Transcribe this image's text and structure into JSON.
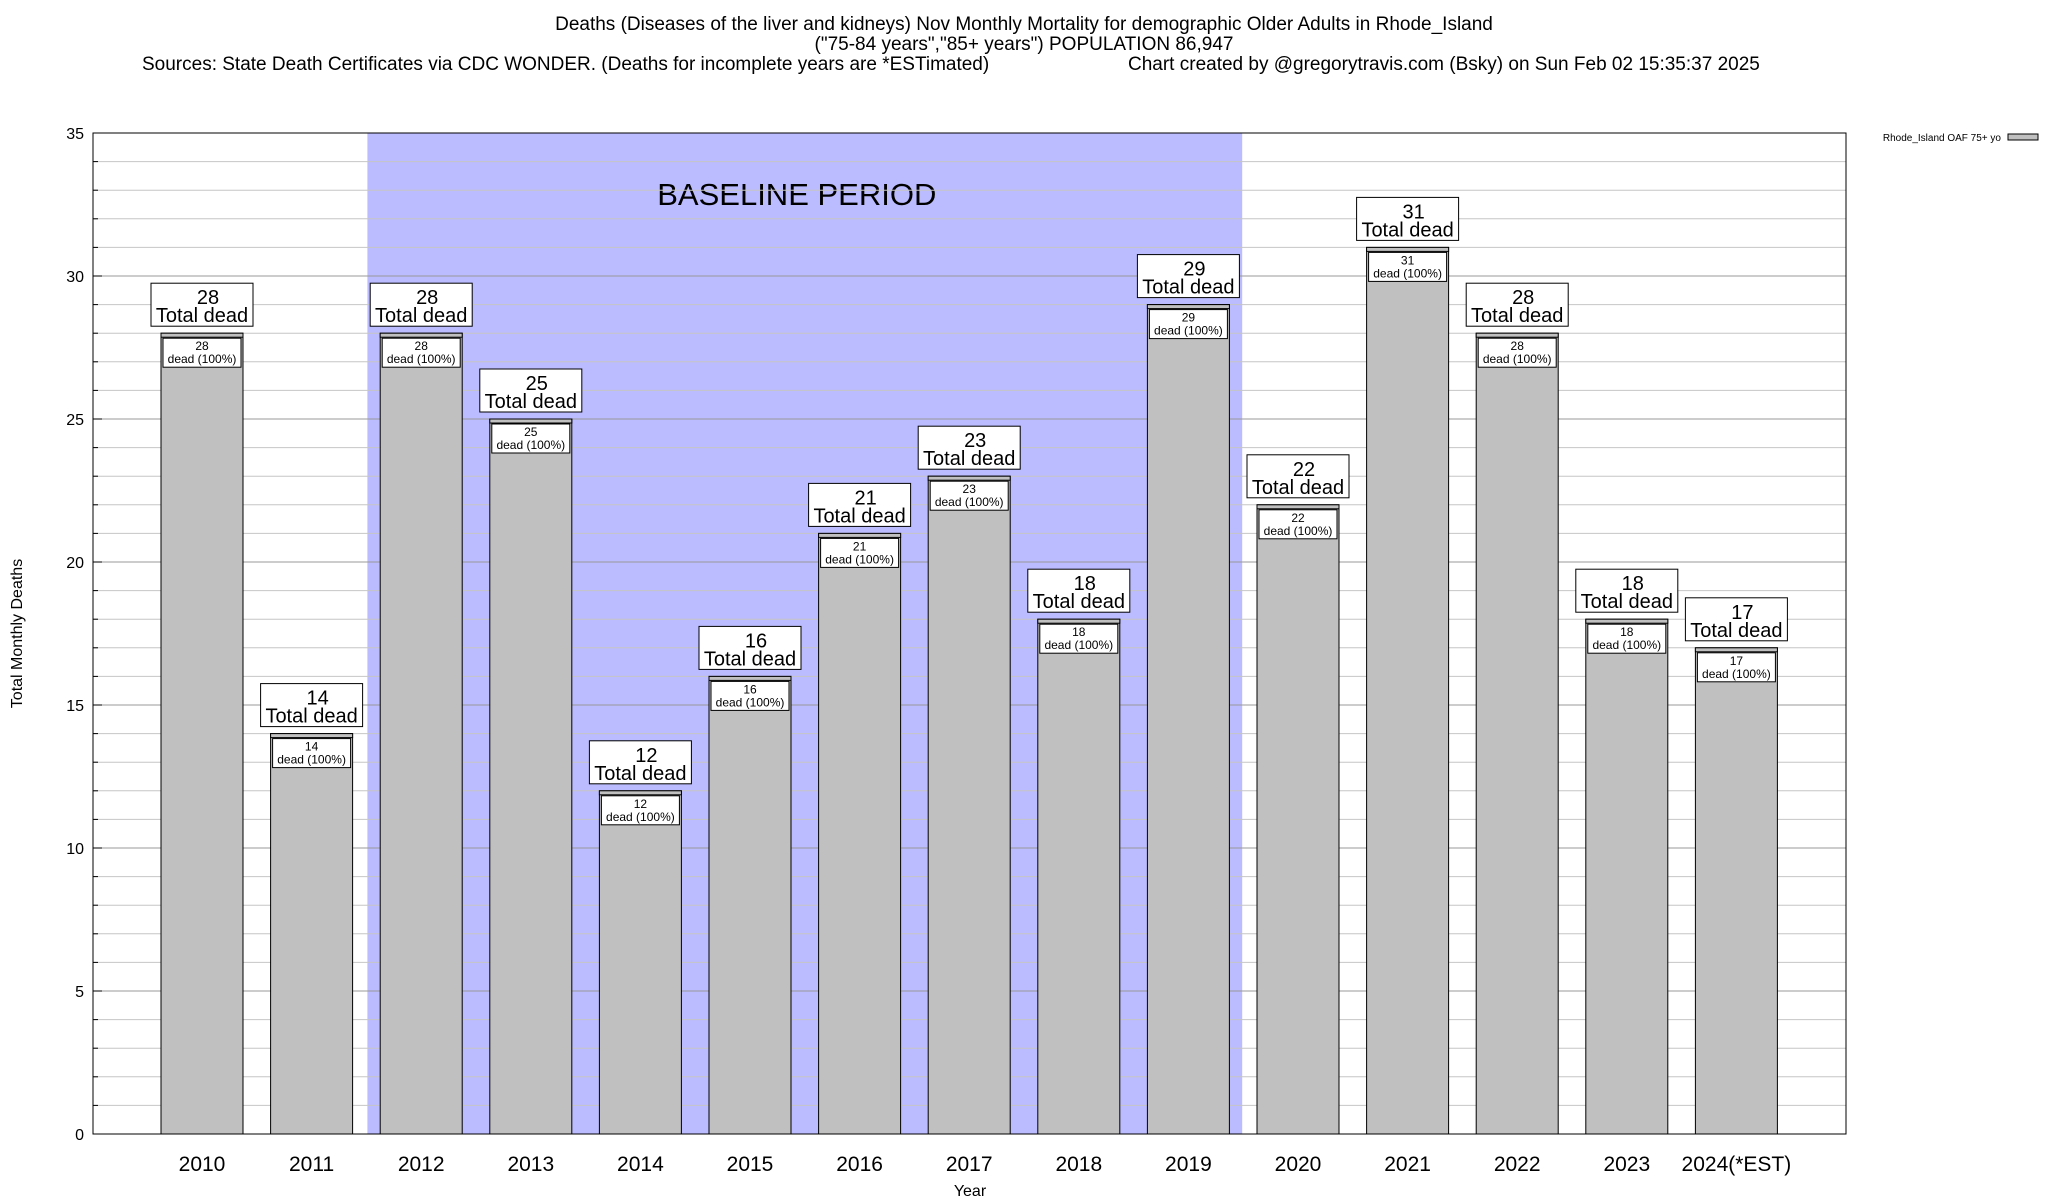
{
  "header": {
    "title_line1": "Deaths (Diseases of the liver and kidneys) Nov Monthly Mortality for demographic Older Adults in Rhode_Island",
    "title_line2": "(\"75-84 years\",\"85+ years\") POPULATION 86,947",
    "sources": "Sources: State Death Certificates via CDC WONDER. (Deaths for incomplete years are *ESTimated)",
    "credit": "Chart created by @gregorytravis.com (Bsky) on Sun Feb 02 15:35:37 2025"
  },
  "chart_data": {
    "type": "bar",
    "title": "Deaths (Diseases of the liver and kidneys) Nov Monthly Mortality for demographic Older Adults in Rhode_Island",
    "xlabel": "Year",
    "ylabel": "Total Monthly Deaths",
    "ylim": [
      0,
      35
    ],
    "yticks": [
      0,
      5,
      10,
      15,
      20,
      25,
      30,
      35
    ],
    "grid": true,
    "legend_position": "top-right",
    "categories": [
      "2010",
      "2011",
      "2012",
      "2013",
      "2014",
      "2015",
      "2016",
      "2017",
      "2018",
      "2019",
      "2020",
      "2021",
      "2022",
      "2023",
      "2024(*EST)"
    ],
    "series": [
      {
        "name": "Rhode_Island OAF 75+ yo",
        "color": "#c0c0c0",
        "values": [
          28,
          14,
          28,
          25,
          12,
          16,
          21,
          23,
          18,
          29,
          22,
          31,
          28,
          18,
          17
        ]
      }
    ],
    "baseline": {
      "label": "BASELINE PERIOD",
      "start": "2012",
      "end": "2019",
      "color": "#bbbbff"
    },
    "total_label_suffix": "Total dead",
    "inner_label_suffix": "dead (100%)"
  }
}
